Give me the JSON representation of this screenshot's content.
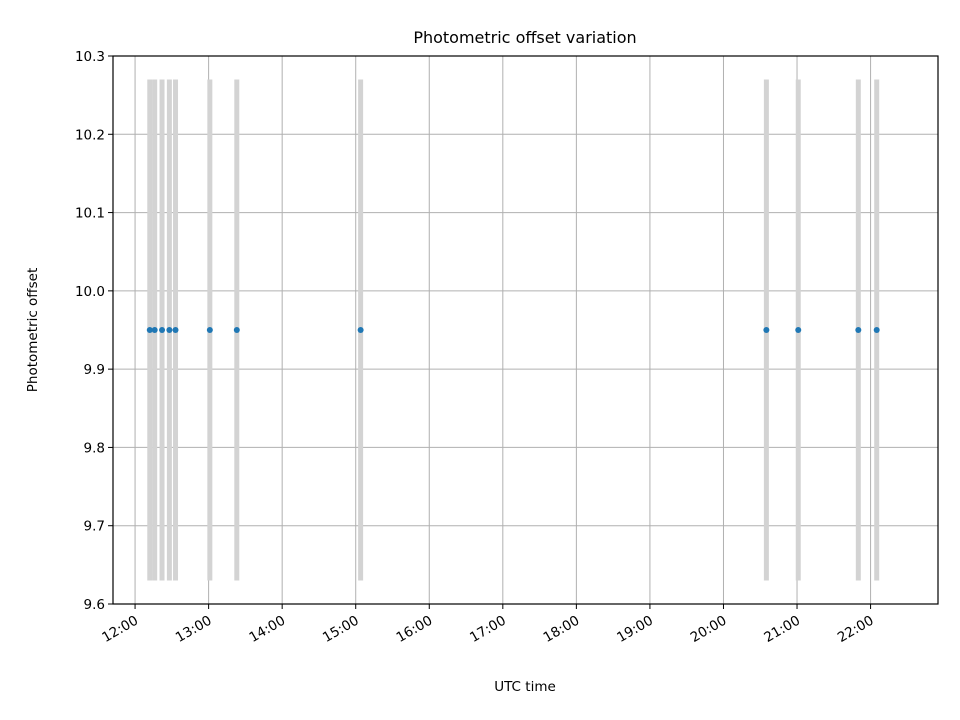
{
  "chart_data": {
    "type": "scatter",
    "title": "Photometric offset variation",
    "xlabel": "UTC time",
    "ylabel": "Photometric offset",
    "x_axis": {
      "kind": "time",
      "lim": [
        "11:42",
        "22:55"
      ],
      "ticks": [
        "12:00",
        "13:00",
        "14:00",
        "15:00",
        "16:00",
        "17:00",
        "18:00",
        "19:00",
        "20:00",
        "21:00",
        "22:00"
      ]
    },
    "y_axis": {
      "lim": [
        9.6,
        10.3
      ],
      "ticks": [
        "9.6",
        "9.7",
        "9.8",
        "9.9",
        "10.0",
        "10.1",
        "10.2",
        "10.3"
      ]
    },
    "grid": true,
    "series": [
      {
        "marker_color": "#1f77b4",
        "x": [
          "12:12",
          "12:16",
          "12:22",
          "12:28",
          "12:33",
          "13:01",
          "13:23",
          "15:04",
          "20:35",
          "21:01",
          "21:50",
          "22:05"
        ],
        "y": [
          9.95,
          9.95,
          9.95,
          9.95,
          9.95,
          9.95,
          9.95,
          9.95,
          9.95,
          9.95,
          9.95,
          9.95
        ],
        "bar_range": [
          9.63,
          10.27
        ]
      }
    ],
    "colors": {
      "marker": "#1f77b4",
      "vertical_bars": "#d3d3d3",
      "grid": "#b0b0b0"
    }
  }
}
